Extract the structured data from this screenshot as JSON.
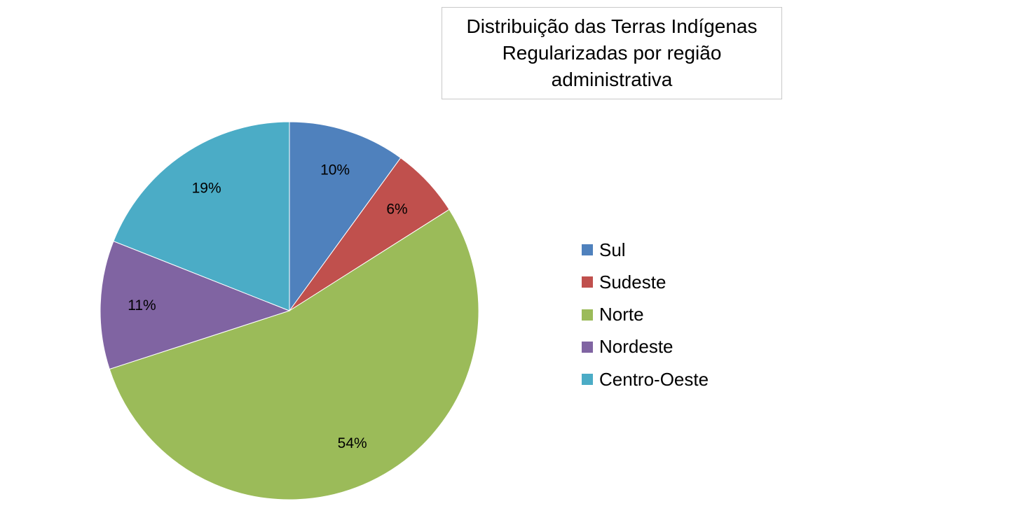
{
  "chart_data": {
    "type": "pie",
    "title": "Distribuição das Terras Indígenas Regularizadas por região administrativa",
    "categories": [
      "Sul",
      "Sudeste",
      "Norte",
      "Nordeste",
      "Centro-Oeste"
    ],
    "values": [
      10,
      6,
      54,
      11,
      19
    ],
    "data_labels": [
      "10%",
      "6%",
      "54%",
      "11%",
      "19%"
    ],
    "colors": [
      "#4f81bd",
      "#c0504d",
      "#9bbb59",
      "#8064a2",
      "#4bacc6"
    ],
    "legend_position": "right",
    "start_angle": "12 o'clock",
    "direction": "clockwise"
  }
}
